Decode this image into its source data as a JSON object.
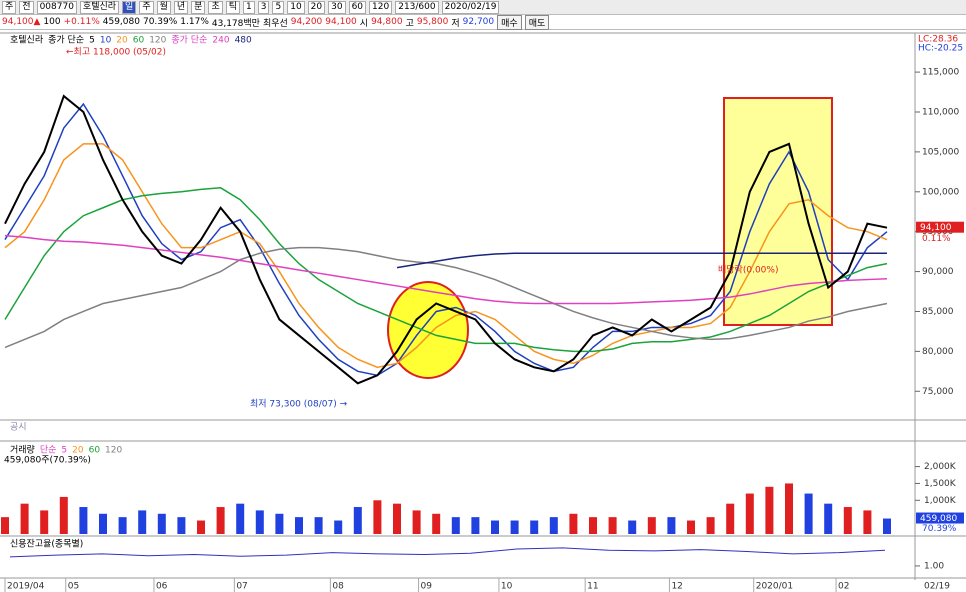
{
  "toolbar": {
    "row1": [
      "주",
      "전",
      "008770",
      "호텔신라",
      "일",
      "주",
      "월",
      "년",
      "분",
      "초",
      "틱",
      "1",
      "3",
      "5",
      "10",
      "20",
      "30",
      "60",
      "120",
      "213/600",
      "2020/02/19"
    ],
    "row2": [
      "94,100▲",
      "100",
      "+0.11%",
      "459,080",
      "70.39%",
      "1.17%",
      "43,178백만",
      "최우선",
      "94,200",
      "94,100",
      "시",
      "94,800",
      "고",
      "95,800",
      "저",
      "92,700",
      "매수",
      "매도"
    ]
  },
  "chart_data": [
    {
      "type": "line",
      "title": "호텔신라",
      "legend_prefix": "종가 단순",
      "legend_prefix2": "종가 단순",
      "ylim": [
        71400,
        119900
      ],
      "yticks": [
        {
          "value": 75000,
          "label": "75,000"
        },
        {
          "value": 80000,
          "label": "80,000"
        },
        {
          "value": 85000,
          "label": "85,000"
        },
        {
          "value": 90000,
          "label": "90,000"
        },
        {
          "value": 95000,
          "label": "95,000"
        },
        {
          "value": 100000,
          "label": "100,000"
        },
        {
          "value": 105000,
          "label": "105,000"
        },
        {
          "value": 110000,
          "label": "110,000"
        },
        {
          "value": 115000,
          "label": "115,000"
        }
      ],
      "x_labels": [
        {
          "value": 0,
          "label": "2019/04"
        },
        {
          "value": 3.1,
          "label": "05"
        },
        {
          "value": 7.6,
          "label": "06"
        },
        {
          "value": 11.7,
          "label": "07"
        },
        {
          "value": 16.6,
          "label": "08"
        },
        {
          "value": 21.1,
          "label": "09"
        },
        {
          "value": 25.2,
          "label": "10"
        },
        {
          "value": 29.6,
          "label": "11"
        },
        {
          "value": 33.9,
          "label": "12"
        },
        {
          "value": 38.2,
          "label": "2020/01"
        },
        {
          "value": 42.4,
          "label": "02"
        }
      ],
      "current_date": "02/19",
      "indicator_lc": "LC:28.36",
      "indicator_hc": "HC:-20.25",
      "last_label": "94,100",
      "last_change": "0.11%",
      "annotations": [
        "←최고 118,000 (05/02)",
        "최저 73,300 (08/07) →",
        "배당락(0.00%)"
      ],
      "series": [
        {
          "name": "5",
          "color": "#000000",
          "values": [
            96000,
            101000,
            105000,
            112000,
            110000,
            104000,
            99000,
            95000,
            92000,
            91000,
            94000,
            98000,
            95000,
            89000,
            84000,
            82000,
            80000,
            78000,
            76000,
            77000,
            80000,
            84000,
            86000,
            85000,
            84000,
            81000,
            79000,
            78000,
            77500,
            79000,
            82000,
            83000,
            82000,
            84000,
            82500,
            84000,
            85500,
            90000,
            100000,
            105000,
            106000,
            96000,
            88000,
            90000,
            96000,
            95500
          ]
        },
        {
          "name": "10",
          "color": "#1f3fbf",
          "values": [
            94000,
            98000,
            102000,
            108000,
            111000,
            107000,
            102000,
            97000,
            93500,
            91500,
            92500,
            95500,
            96500,
            93000,
            88500,
            84500,
            81500,
            79000,
            77500,
            77000,
            78500,
            82000,
            85000,
            85500,
            84500,
            82500,
            80000,
            78500,
            77500,
            78000,
            80500,
            82500,
            82500,
            83000,
            83000,
            83500,
            84500,
            87500,
            95000,
            101000,
            105000,
            100000,
            91500,
            89000,
            93000,
            95000
          ]
        },
        {
          "name": "20",
          "color": "#f7941d",
          "values": [
            93000,
            95000,
            99000,
            104000,
            106000,
            106000,
            104000,
            100000,
            96000,
            93000,
            93000,
            94000,
            95000,
            93500,
            90000,
            86000,
            83000,
            80500,
            79000,
            78000,
            78500,
            80500,
            83000,
            84500,
            85000,
            84000,
            82000,
            80000,
            79000,
            78500,
            79500,
            81000,
            82000,
            82500,
            83000,
            83000,
            83500,
            85500,
            90000,
            95000,
            98500,
            99000,
            97000,
            95500,
            95000,
            94000
          ]
        },
        {
          "name": "60",
          "color": "#1aa33a",
          "values": [
            84000,
            88000,
            92000,
            95000,
            97000,
            98000,
            99000,
            99500,
            99800,
            100000,
            100300,
            100500,
            99000,
            96500,
            93500,
            91000,
            89000,
            87500,
            86000,
            85000,
            84000,
            83000,
            82000,
            81500,
            81000,
            81000,
            81000,
            80500,
            80200,
            80000,
            80000,
            80300,
            81000,
            81200,
            81200,
            81500,
            81800,
            82500,
            83500,
            84500,
            86000,
            87500,
            88500,
            89500,
            90500,
            91000
          ]
        },
        {
          "name": "120",
          "color": "#808080",
          "values": [
            80500,
            81500,
            82500,
            84000,
            85000,
            86000,
            86500,
            87000,
            87500,
            88000,
            89000,
            90000,
            91500,
            92300,
            92800,
            93000,
            93000,
            92800,
            92500,
            92000,
            91500,
            91200,
            91000,
            90500,
            89800,
            89000,
            88000,
            87000,
            86000,
            85000,
            84200,
            83500,
            83000,
            82500,
            82000,
            81700,
            81500,
            81600,
            82000,
            82500,
            83000,
            83800,
            84300,
            85000,
            85500,
            86000
          ]
        },
        {
          "name": "240",
          "color": "#e040c0",
          "values": [
            94500,
            94300,
            94000,
            93800,
            93700,
            93500,
            93300,
            93000,
            92700,
            92400,
            92100,
            91800,
            91400,
            91000,
            90600,
            90200,
            89800,
            89400,
            89000,
            88600,
            88200,
            87800,
            87400,
            87000,
            86600,
            86300,
            86100,
            86000,
            86000,
            86000,
            86000,
            86000,
            86100,
            86200,
            86300,
            86400,
            86600,
            86800,
            87200,
            87700,
            88200,
            88500,
            88700,
            88900,
            89000,
            89100
          ]
        },
        {
          "name": "480",
          "color": "#1a237e",
          "values": [
            null,
            null,
            null,
            null,
            null,
            null,
            null,
            null,
            null,
            null,
            null,
            null,
            null,
            null,
            null,
            null,
            null,
            null,
            null,
            null,
            90500,
            90900,
            91300,
            91700,
            92000,
            92200,
            92300,
            92300,
            92300,
            92300,
            92300,
            92300,
            92300,
            92300,
            92300,
            92300,
            92300,
            92300,
            92300,
            92300,
            92300,
            92300,
            92300,
            92300,
            92300,
            92300
          ]
        }
      ]
    },
    {
      "type": "bar",
      "title": "거래량",
      "legend_prefix": "단순",
      "legend": [
        "5",
        "20",
        "60",
        "120"
      ],
      "subtitle": "459,080주(70.39%)",
      "ylim": [
        0,
        2700000
      ],
      "yticks": [
        {
          "value": 1000000,
          "label": "1,000K"
        },
        {
          "value": 1500000,
          "label": "1,500K"
        },
        {
          "value": 2000000,
          "label": "2,000K"
        }
      ],
      "last_label": "459,080",
      "last_ratio": "70.39%",
      "values": [
        500000,
        900000,
        700000,
        1100000,
        800000,
        600000,
        500000,
        700000,
        600000,
        500000,
        400000,
        800000,
        900000,
        700000,
        600000,
        500000,
        500000,
        400000,
        800000,
        1000000,
        900000,
        700000,
        600000,
        500000,
        500000,
        400000,
        400000,
        400000,
        500000,
        600000,
        500000,
        500000,
        400000,
        500000,
        500000,
        400000,
        500000,
        900000,
        1200000,
        1400000,
        1500000,
        1200000,
        900000,
        800000,
        700000,
        459080
      ]
    },
    {
      "type": "line",
      "title": "신용잔고율(종목별)",
      "ylim": [
        0.8,
        1.48
      ],
      "yticks": [
        {
          "value": 1,
          "label": "1.00"
        }
      ],
      "series": [
        {
          "color": "#3030c0",
          "values": [
            1.15,
            1.18,
            1.2,
            1.17,
            1.19,
            1.16,
            1.18,
            1.22,
            1.2,
            1.19,
            1.21,
            1.28,
            1.3,
            1.26,
            1.25,
            1.27,
            1.24,
            1.2,
            1.22,
            1.26
          ]
        }
      ]
    },
    {
      "type": "panel",
      "title": "공시"
    }
  ]
}
